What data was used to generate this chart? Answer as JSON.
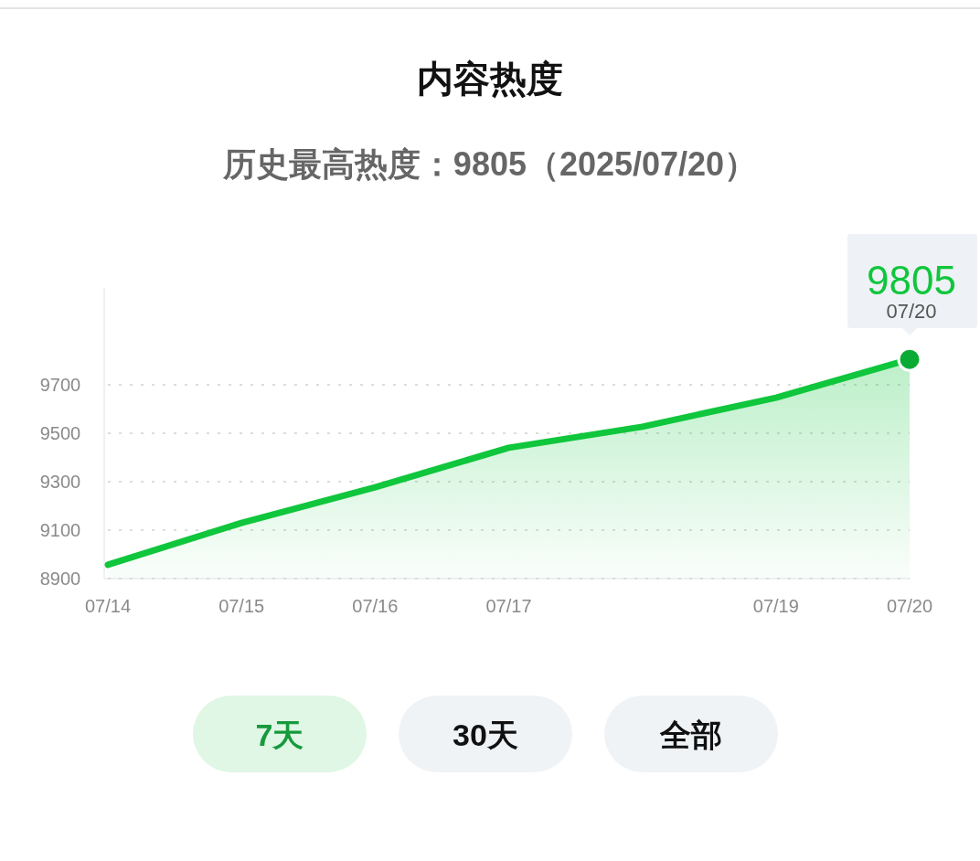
{
  "chart_data": {
    "type": "area",
    "title": "内容热度",
    "subtitle": "历史最高热度：9805（2025/07/20）",
    "categories": [
      "07/14",
      "07/15",
      "07/16",
      "07/17",
      null,
      "07/19",
      "07/20"
    ],
    "series": [
      {
        "color": "#0fc63c",
        "values": [
          8957,
          9130,
          9277,
          9440,
          9527,
          9647,
          9805
        ]
      }
    ],
    "ylim": [
      8900,
      10100
    ],
    "yticks": [
      8900,
      9100,
      9300,
      9500,
      9700
    ],
    "grid": "y",
    "line_style": "solid",
    "annotations": [
      {
        "text": "9805",
        "x": "07/20",
        "y": 9805
      },
      {
        "text": "07/20",
        "x": "07/20",
        "y": 9805
      },
      "7天",
      "30天",
      "全部"
    ]
  }
}
